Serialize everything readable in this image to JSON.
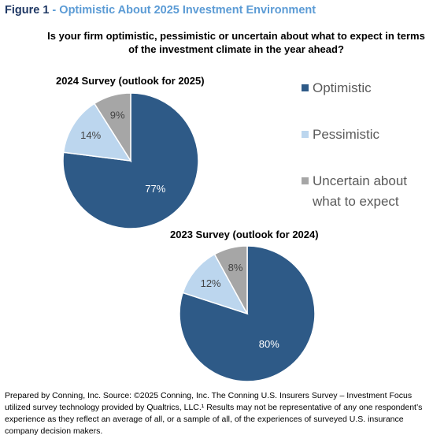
{
  "figure": {
    "label": "Figure 1",
    "separator": " - ",
    "title": "Optimistic About 2025 Investment Environment",
    "question": "Is your firm optimistic, pessimistic or uncertain about what to expect in terms of the investment climate in the year ahead?"
  },
  "colors": {
    "optimistic": "#2e5a87",
    "pessimistic": "#bcd6ee",
    "uncertain": "#a6a6a6",
    "label_dark": "#ffffff",
    "label_light": "#444444",
    "figure_label": "#1f3864",
    "figure_title": "#5b9bd5"
  },
  "legend": {
    "items": [
      {
        "label": "Optimistic",
        "color": "#2e5a87"
      },
      {
        "label": "Pessimistic",
        "color": "#bcd6ee"
      },
      {
        "label": "Uncertain about what to expect",
        "color": "#a6a6a6"
      }
    ]
  },
  "chart_data": [
    {
      "type": "pie",
      "title": "2024 Survey (outlook for 2025)",
      "categories": [
        "Optimistic",
        "Pessimistic",
        "Uncertain about what to expect"
      ],
      "values": [
        77,
        14,
        9
      ],
      "labels": [
        "77%",
        "14%",
        "9%"
      ]
    },
    {
      "type": "pie",
      "title": "2023 Survey (outlook for 2024)",
      "categories": [
        "Optimistic",
        "Pessimistic",
        "Uncertain about what to expect"
      ],
      "values": [
        80,
        12,
        8
      ],
      "labels": [
        "80%",
        "12%",
        "8%"
      ]
    }
  ],
  "source": "Prepared by Conning, Inc. Source: ©2025 Conning, Inc. The Conning U.S. Insurers Survey – Investment Focus utilized survey technology provided by Qualtrics, LLC.¹ Results may not be representative of any one respondent’s experience as they reflect an average of all, or a sample of all, of the experiences of surveyed U.S. insurance company decision makers."
}
